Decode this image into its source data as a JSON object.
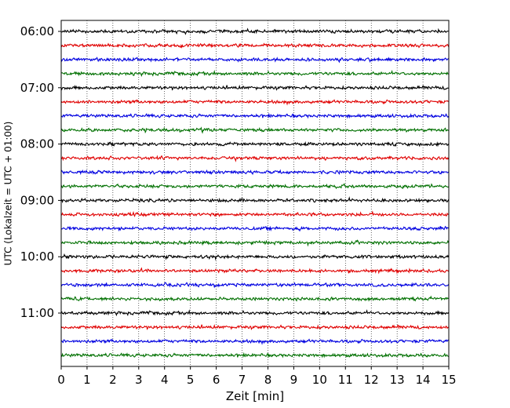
{
  "chart_data": {
    "type": "line",
    "title": "",
    "xlabel": "Zeit  [min]",
    "ylabel": "UTC (Lokalzeit = UTC + 01:00)",
    "xlim": [
      0,
      15
    ],
    "x_ticks": [
      "0",
      "1",
      "2",
      "3",
      "4",
      "5",
      "6",
      "7",
      "8",
      "9",
      "10",
      "11",
      "12",
      "13",
      "14",
      "15"
    ],
    "y_ticks": [
      "06:00",
      "07:00",
      "08:00",
      "09:00",
      "10:00",
      "11:00"
    ],
    "grid": "vertical dotted",
    "trace_minutes_per_row": 15,
    "trace_colors": [
      "#000000",
      "#e00000",
      "#0000e0",
      "#007000"
    ],
    "traces": [
      {
        "start": "06:00",
        "color": "#000000"
      },
      {
        "start": "06:15",
        "color": "#e00000"
      },
      {
        "start": "06:30",
        "color": "#0000e0"
      },
      {
        "start": "06:45",
        "color": "#007000"
      },
      {
        "start": "07:00",
        "color": "#000000"
      },
      {
        "start": "07:15",
        "color": "#e00000"
      },
      {
        "start": "07:30",
        "color": "#0000e0"
      },
      {
        "start": "07:45",
        "color": "#007000"
      },
      {
        "start": "08:00",
        "color": "#000000"
      },
      {
        "start": "08:15",
        "color": "#e00000"
      },
      {
        "start": "08:30",
        "color": "#0000e0"
      },
      {
        "start": "08:45",
        "color": "#007000"
      },
      {
        "start": "09:00",
        "color": "#000000"
      },
      {
        "start": "09:15",
        "color": "#e00000"
      },
      {
        "start": "09:30",
        "color": "#0000e0"
      },
      {
        "start": "09:45",
        "color": "#007000"
      },
      {
        "start": "10:00",
        "color": "#000000"
      },
      {
        "start": "10:15",
        "color": "#e00000"
      },
      {
        "start": "10:30",
        "color": "#0000e0"
      },
      {
        "start": "10:45",
        "color": "#007000"
      },
      {
        "start": "11:00",
        "color": "#000000"
      },
      {
        "start": "11:15",
        "color": "#e00000"
      },
      {
        "start": "11:30",
        "color": "#0000e0"
      },
      {
        "start": "11:45",
        "color": "#007000"
      }
    ]
  }
}
